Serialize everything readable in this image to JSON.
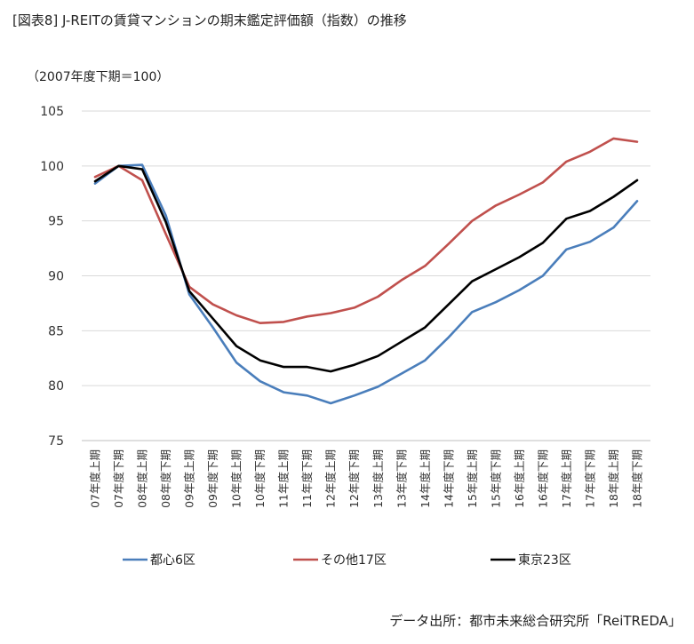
{
  "header": {
    "title": "[図表8]  J-REITの賃貸マンションの期末鑑定評価額（指数）の推移",
    "unit_note": "（2007年度下期＝100）"
  },
  "footer": {
    "source": "データ出所：都市未来総合研究所「ReiTREDA」"
  },
  "chart_data": {
    "type": "line",
    "ylim": [
      75,
      105
    ],
    "yticks": [
      75,
      80,
      85,
      90,
      95,
      100,
      105
    ],
    "grid": true,
    "legend_position": "bottom",
    "categories": [
      "07年度上期",
      "07年度下期",
      "08年度上期",
      "08年度下期",
      "09年度上期",
      "09年度下期",
      "10年度上期",
      "10年度下期",
      "11年度上期",
      "11年度下期",
      "12年度上期",
      "12年度下期",
      "13年度上期",
      "13年度下期",
      "14年度上期",
      "14年度下期",
      "15年度上期",
      "15年度下期",
      "16年度上期",
      "16年度下期",
      "17年度上期",
      "17年度下期",
      "18年度上期",
      "18年度下期"
    ],
    "series": [
      {
        "name": "都心6区",
        "color": "#4a7ebb",
        "values": [
          98.4,
          100.0,
          100.1,
          95.5,
          88.3,
          85.3,
          82.1,
          80.4,
          79.4,
          79.1,
          78.4,
          79.1,
          79.9,
          81.1,
          82.3,
          84.4,
          86.7,
          87.6,
          88.7,
          90.0,
          92.4,
          93.1,
          94.4,
          96.8
        ]
      },
      {
        "name": "その他17区",
        "color": "#c0504d",
        "values": [
          99.0,
          100.0,
          98.7,
          93.8,
          89.0,
          87.4,
          86.4,
          85.7,
          85.8,
          86.3,
          86.6,
          87.1,
          88.1,
          89.6,
          90.9,
          92.9,
          95.0,
          96.4,
          97.4,
          98.5,
          100.4,
          101.3,
          102.5,
          102.2
        ]
      },
      {
        "name": "東京23区",
        "color": "#000000",
        "values": [
          98.6,
          100.0,
          99.7,
          94.9,
          88.6,
          86.1,
          83.6,
          82.3,
          81.7,
          81.7,
          81.3,
          81.9,
          82.7,
          84.0,
          85.3,
          87.4,
          89.5,
          90.6,
          91.7,
          93.0,
          95.2,
          95.9,
          97.2,
          98.7
        ]
      }
    ]
  }
}
